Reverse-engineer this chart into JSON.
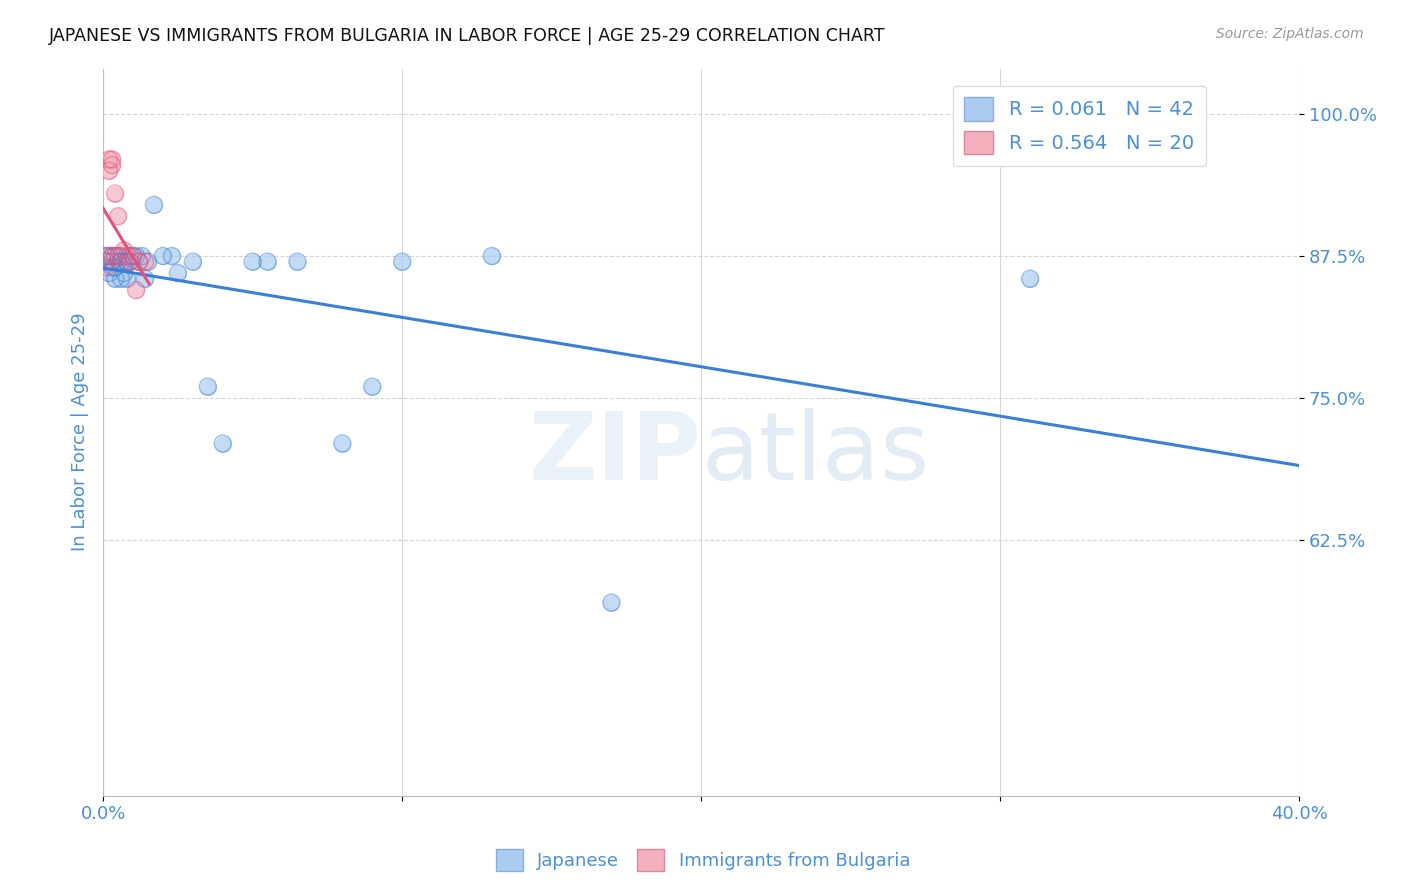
{
  "title": "JAPANESE VS IMMIGRANTS FROM BULGARIA IN LABOR FORCE | AGE 25-29 CORRELATION CHART",
  "source": "Source: ZipAtlas.com",
  "ylabel": "In Labor Force | Age 25-29",
  "xlim": [
    0.0,
    0.4
  ],
  "ylim": [
    0.4,
    1.04
  ],
  "watermark_top": "ZIP",
  "watermark_bot": "atlas",
  "japanese_x": [
    0.001,
    0.001,
    0.002,
    0.002,
    0.003,
    0.003,
    0.003,
    0.004,
    0.004,
    0.004,
    0.005,
    0.005,
    0.006,
    0.006,
    0.007,
    0.007,
    0.008,
    0.008,
    0.009,
    0.009,
    0.01,
    0.011,
    0.012,
    0.013,
    0.014,
    0.015,
    0.017,
    0.02,
    0.023,
    0.025,
    0.03,
    0.035,
    0.04,
    0.05,
    0.055,
    0.065,
    0.08,
    0.09,
    0.1,
    0.13,
    0.17,
    0.31
  ],
  "japanese_y": [
    0.875,
    0.87,
    0.875,
    0.86,
    0.875,
    0.87,
    0.865,
    0.875,
    0.865,
    0.855,
    0.87,
    0.875,
    0.855,
    0.87,
    0.87,
    0.86,
    0.87,
    0.855,
    0.87,
    0.875,
    0.875,
    0.875,
    0.87,
    0.875,
    0.855,
    0.87,
    0.92,
    0.875,
    0.875,
    0.86,
    0.87,
    0.76,
    0.71,
    0.87,
    0.87,
    0.87,
    0.71,
    0.76,
    0.87,
    0.875,
    0.57,
    0.855
  ],
  "bulgaria_x": [
    0.001,
    0.001,
    0.001,
    0.002,
    0.002,
    0.003,
    0.003,
    0.003,
    0.004,
    0.004,
    0.005,
    0.005,
    0.006,
    0.007,
    0.008,
    0.009,
    0.01,
    0.011,
    0.012,
    0.014
  ],
  "bulgaria_y": [
    0.875,
    0.87,
    0.865,
    0.96,
    0.95,
    0.96,
    0.955,
    0.875,
    0.93,
    0.875,
    0.91,
    0.875,
    0.875,
    0.88,
    0.875,
    0.87,
    0.875,
    0.845,
    0.87,
    0.87
  ],
  "japanese_color": "#aaccf0",
  "bulgaria_color": "#f5b0c0",
  "japanese_line_color": "#3a7fd5",
  "bulgaria_line_color": "#e8507a",
  "axis_color": "#4a90d9",
  "background_color": "#ffffff",
  "grid_color": "#cccccc",
  "ytick_vals": [
    0.625,
    0.75,
    0.875,
    1.0
  ],
  "ytick_labels": [
    "62.5%",
    "75.0%",
    "87.5%",
    "100.0%"
  ],
  "xticks": [
    0.0,
    0.1,
    0.2,
    0.3,
    0.4
  ],
  "xtick_labels": [
    "0.0%",
    "",
    "",
    "",
    "40.0%"
  ]
}
